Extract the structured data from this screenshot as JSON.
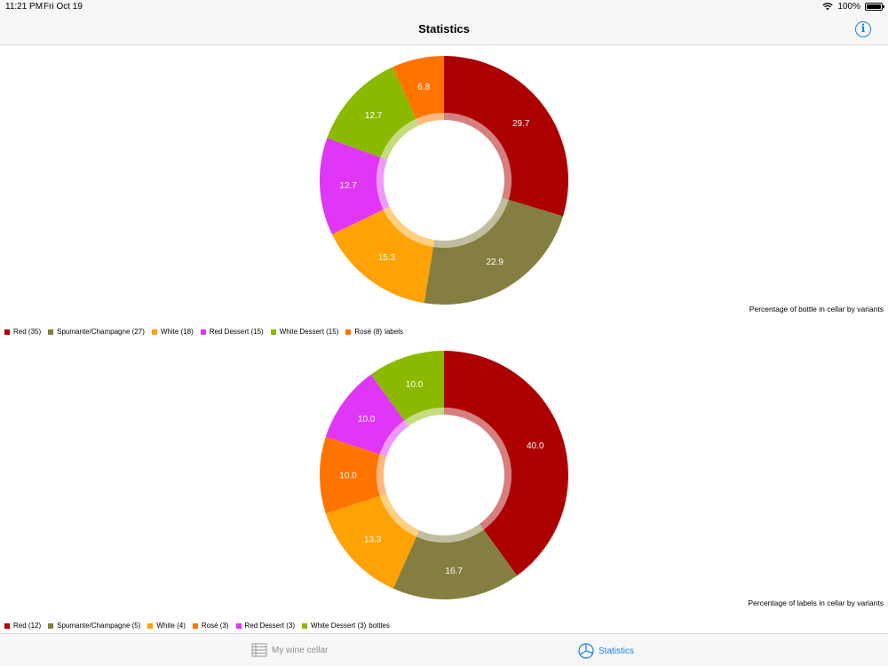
{
  "status_bar": {
    "time": "11:21 PM",
    "date": "Fri Oct 19",
    "battery": "100%"
  },
  "nav": {
    "title": "Statistics",
    "info_label": "i"
  },
  "tabs": [
    {
      "label": "My wine cellar",
      "icon": "wine-list-icon",
      "selected": false
    },
    {
      "label": "Statistics",
      "icon": "pie-chart-icon",
      "selected": true
    }
  ],
  "chart_data": [
    {
      "type": "pie",
      "donut": true,
      "caption": "Percentage of bottle in cellar by variants",
      "categories": [
        "Red",
        "Spumante/Champagne",
        "White",
        "Red Dessert",
        "White Dessert",
        "Rosé"
      ],
      "values": [
        29.7,
        22.9,
        15.3,
        12.7,
        12.7,
        6.8
      ],
      "data_labels": [
        "29.7",
        "22.9",
        "15.3",
        "12.7",
        "12.7",
        "6.8"
      ],
      "colors": [
        "#ac0000",
        "#847e40",
        "#ffa205",
        "#e036f7",
        "#8ab900",
        "#ff7300"
      ],
      "legend": [
        "Red (35)",
        "Spumante/Champagne (27)",
        "White (18)",
        "Red Dessert (15)",
        "White Dessert (15)",
        "Rosé (8)"
      ],
      "legend_suffix": "labels"
    },
    {
      "type": "pie",
      "donut": true,
      "caption": "Percentage of labels in cellar by variants",
      "categories": [
        "Red",
        "Spumante/Champagne",
        "White",
        "Rosé",
        "Red Dessert",
        "White Dessert"
      ],
      "values": [
        40.0,
        16.7,
        13.3,
        10.0,
        10.0,
        10.0
      ],
      "data_labels": [
        "40.0",
        "16.7",
        "13.3",
        "10.0",
        "10.0",
        "10.0"
      ],
      "colors": [
        "#ac0000",
        "#847e40",
        "#ffa205",
        "#ff7300",
        "#e036f7",
        "#8ab900"
      ],
      "legend": [
        "Red (12)",
        "Spumante/Champagne (5)",
        "White (4)",
        "Rosé (3)",
        "Red Dessert (3)",
        "White Dessert (3)"
      ],
      "legend_suffix": "bottles"
    }
  ]
}
